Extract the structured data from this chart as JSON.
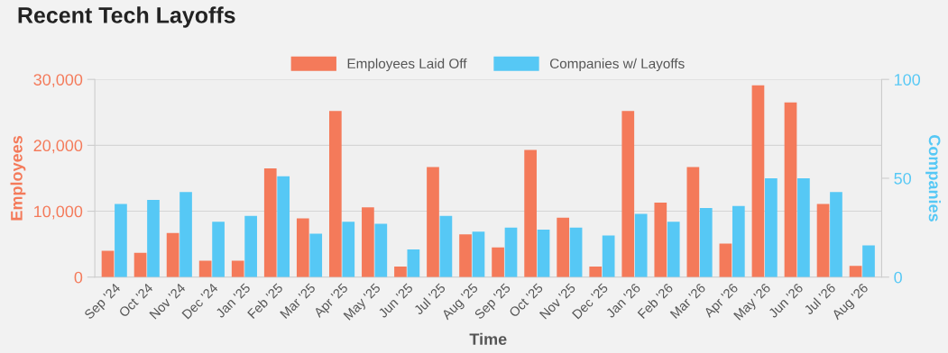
{
  "chart_data": {
    "type": "bar",
    "title": "Recent Tech Layoffs",
    "xlabel": "Time",
    "ylabel": "Employees",
    "y2label": "Companies",
    "categories": [
      "Sep '24",
      "Oct '24",
      "Nov '24",
      "Dec '24",
      "Jan '25",
      "Feb '25",
      "Mar '25",
      "Apr '25",
      "May '25",
      "Jun '25",
      "Jul '25",
      "Aug '25",
      "Sep '25",
      "Oct '25",
      "Nov '25",
      "Dec '25",
      "Jan '26",
      "Feb '26",
      "Mar '26",
      "Apr '26",
      "May '26",
      "Jun '26",
      "Jul '26",
      "Aug '26"
    ],
    "series": [
      {
        "name": "Employees Laid Off",
        "color": "#f47a5a",
        "values": [
          4000,
          3700,
          6700,
          2500,
          2500,
          16500,
          8900,
          25200,
          10600,
          1600,
          16700,
          6500,
          4500,
          19300,
          9000,
          1600,
          25200,
          11300,
          16700,
          5100,
          29100,
          26500,
          11100,
          1700
        ]
      },
      {
        "name": "Companies w/ Layoffs",
        "color": "#56c8f5",
        "axis": "y2",
        "values": [
          37,
          39,
          43,
          28,
          31,
          51,
          22,
          28,
          27,
          14,
          31,
          23,
          25,
          24,
          25,
          21,
          32,
          28,
          35,
          36,
          50,
          50,
          43,
          16
        ]
      }
    ],
    "ylim": [
      0,
      30000
    ],
    "yticks": [
      {
        "value": 0,
        "label": "0"
      },
      {
        "value": 10000,
        "label": "10,000"
      },
      {
        "value": 20000,
        "label": "20,000"
      },
      {
        "value": 30000,
        "label": "30,000"
      }
    ],
    "y2lim": [
      0,
      100
    ],
    "y2ticks": [
      0,
      50,
      100
    ],
    "grid": "y",
    "legend": "top"
  }
}
